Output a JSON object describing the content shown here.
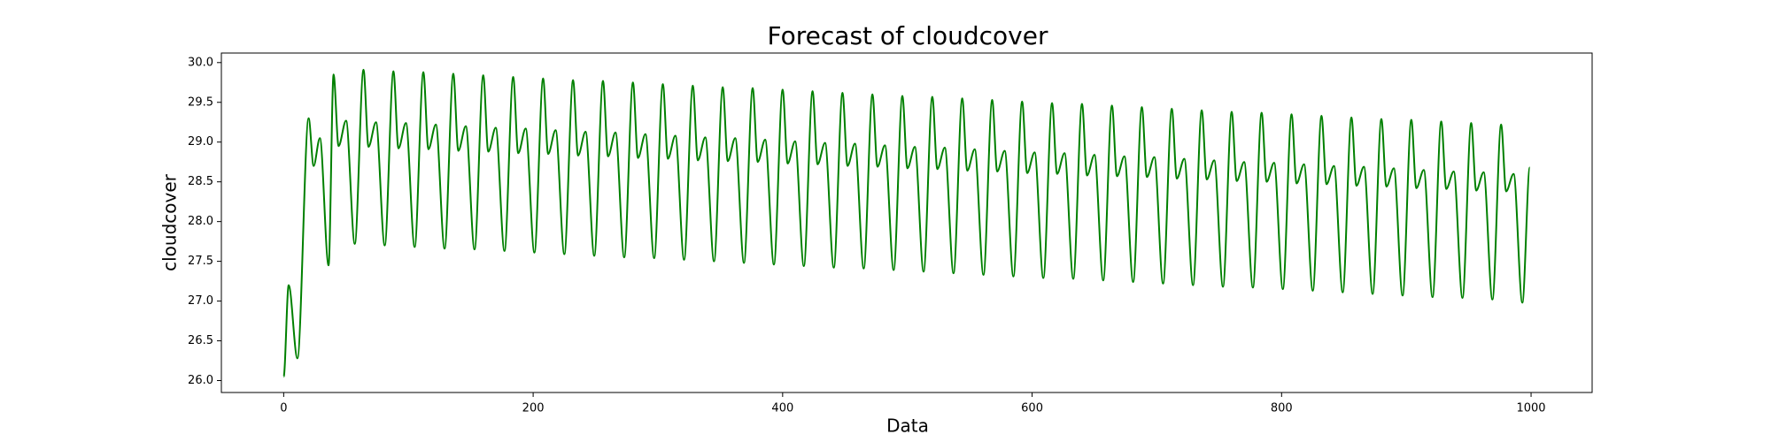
{
  "chart_data": {
    "type": "line",
    "title": "Forecast of cloudcover",
    "x_label": "Data",
    "y_label": "cloudcover",
    "x": [
      0,
      4,
      11,
      20,
      24,
      29,
      36,
      40,
      44,
      50,
      57,
      64,
      68,
      74,
      81,
      88,
      92,
      98,
      105,
      112,
      116,
      122,
      129,
      136,
      140,
      146,
      153,
      160,
      164,
      170,
      177,
      184,
      188,
      194,
      201,
      208,
      212,
      218,
      225,
      232,
      236,
      242,
      249,
      256,
      260,
      266,
      273,
      280,
      284,
      290,
      297,
      304,
      308,
      314,
      321,
      328,
      332,
      338,
      345,
      352,
      356,
      362,
      369,
      376,
      380,
      386,
      393,
      400,
      404,
      410,
      417,
      424,
      428,
      434,
      441,
      448,
      452,
      458,
      465,
      472,
      476,
      482,
      489,
      496,
      500,
      506,
      513,
      520,
      524,
      530,
      537,
      544,
      548,
      554,
      561,
      568,
      572,
      578,
      585,
      592,
      596,
      602,
      609,
      616,
      620,
      626,
      633,
      640,
      644,
      650,
      657,
      664,
      668,
      674,
      681,
      688,
      692,
      698,
      705,
      712,
      716,
      722,
      729,
      736,
      740,
      746,
      753,
      760,
      764,
      770,
      777,
      784,
      788,
      794,
      801,
      808,
      812,
      818,
      825,
      832,
      836,
      842,
      849,
      856,
      860,
      866,
      873,
      880,
      884,
      890,
      897,
      904,
      908,
      914,
      921,
      928,
      932,
      938,
      945,
      952,
      956,
      962,
      969,
      976,
      980,
      986,
      993,
      999
    ],
    "series": [
      {
        "name": "cloudcover",
        "color": "#008000",
        "values": [
          26.05,
          27.2,
          26.28,
          29.3,
          28.7,
          29.05,
          27.45,
          29.85,
          28.95,
          29.27,
          27.72,
          29.91,
          28.94,
          29.25,
          27.7,
          29.89,
          28.92,
          29.24,
          27.68,
          29.88,
          28.91,
          29.22,
          27.66,
          29.86,
          28.89,
          29.2,
          27.65,
          29.84,
          28.88,
          29.18,
          27.63,
          29.82,
          28.86,
          29.17,
          27.61,
          29.8,
          28.85,
          29.15,
          27.59,
          29.78,
          28.83,
          29.13,
          27.57,
          29.77,
          28.82,
          29.12,
          27.55,
          29.75,
          28.8,
          29.1,
          27.54,
          29.73,
          28.79,
          29.08,
          27.52,
          29.71,
          28.77,
          29.06,
          27.5,
          29.69,
          28.76,
          29.05,
          27.48,
          29.68,
          28.75,
          29.03,
          27.46,
          29.66,
          28.73,
          29.01,
          27.44,
          29.64,
          28.72,
          28.99,
          27.42,
          29.62,
          28.7,
          28.98,
          27.41,
          29.6,
          28.69,
          28.96,
          27.39,
          29.58,
          28.67,
          28.94,
          27.37,
          29.57,
          28.66,
          28.93,
          27.35,
          29.55,
          28.64,
          28.91,
          27.33,
          29.53,
          28.63,
          28.89,
          27.31,
          29.51,
          28.61,
          28.87,
          27.29,
          29.49,
          28.6,
          28.86,
          27.28,
          29.48,
          28.58,
          28.84,
          27.26,
          29.46,
          28.57,
          28.82,
          27.24,
          29.44,
          28.56,
          28.81,
          27.22,
          29.42,
          28.54,
          28.79,
          27.2,
          29.4,
          28.53,
          28.77,
          27.18,
          29.38,
          28.51,
          28.75,
          27.17,
          29.37,
          28.5,
          28.74,
          27.15,
          29.35,
          28.48,
          28.72,
          27.13,
          29.33,
          28.47,
          28.7,
          27.11,
          29.31,
          28.45,
          28.69,
          27.09,
          29.29,
          28.44,
          28.67,
          27.07,
          29.28,
          28.42,
          28.65,
          27.05,
          29.26,
          28.41,
          28.63,
          27.04,
          29.24,
          28.39,
          28.62,
          27.02,
          29.22,
          28.38,
          28.6,
          26.98,
          28.68
        ]
      }
    ],
    "xlim": [
      -49.95,
      1048.95
    ],
    "ylim": [
      25.85,
      30.12
    ],
    "xticks": [
      0,
      200,
      400,
      600,
      800,
      1000
    ],
    "yticks": [
      {
        "value": 26.0,
        "label": "26.0"
      },
      26.5,
      {
        "value": 27.0,
        "label": "27.0"
      },
      27.5,
      {
        "value": 28.0,
        "label": "28.0"
      },
      28.5,
      {
        "value": 29.0,
        "label": "29.0"
      },
      29.5,
      {
        "value": 30.0,
        "label": "30.0"
      }
    ],
    "grid": false
  }
}
